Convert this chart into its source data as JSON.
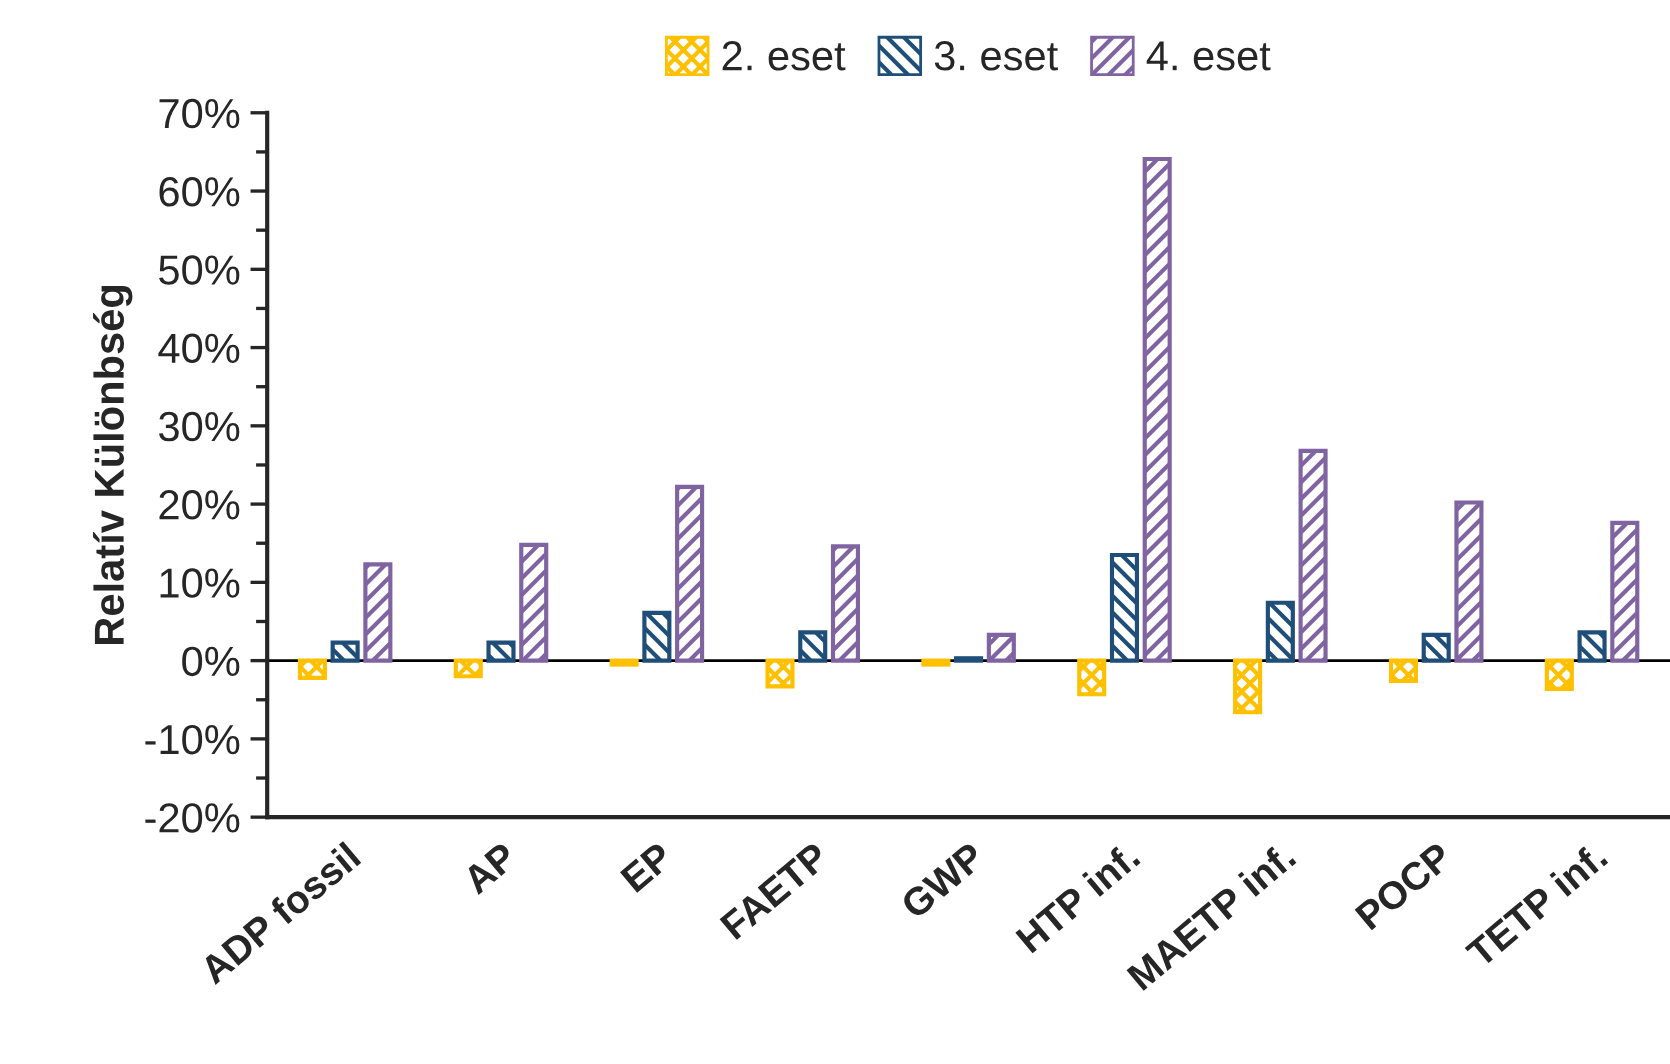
{
  "chart_data": {
    "type": "bar",
    "ylabel": "Relatív Különbség",
    "categories": [
      "ADP fossil",
      "AP",
      "EP",
      "FAETP",
      "GWP",
      "HTP inf.",
      "MAETP inf.",
      "POCP",
      "TETP inf."
    ],
    "series": [
      {
        "name": "2. eset",
        "color": "#ffc000",
        "values": [
          -2.2,
          -2.0,
          -0.5,
          -3.3,
          -0.5,
          -4.3,
          -6.6,
          -2.6,
          -3.6
        ]
      },
      {
        "name": "3. eset",
        "color": "#1f4e79",
        "values": [
          2.3,
          2.3,
          6.1,
          3.6,
          0.3,
          13.5,
          7.4,
          3.3,
          3.6
        ]
      },
      {
        "name": "4. eset",
        "color": "#8064a2",
        "values": [
          12.3,
          14.8,
          22.2,
          14.6,
          3.3,
          64.1,
          26.8,
          20.2,
          17.6
        ]
      }
    ],
    "ylim": [
      -20,
      70
    ],
    "yticks": [
      {
        "value": -20,
        "label": "-20%"
      },
      {
        "value": -10,
        "label": "-10%"
      },
      {
        "value": 0,
        "label": "0%"
      },
      {
        "value": 10,
        "label": "10%"
      },
      {
        "value": 20,
        "label": "20%"
      },
      {
        "value": 30,
        "label": "30%"
      },
      {
        "value": 40,
        "label": "40%"
      },
      {
        "value": 50,
        "label": "50%"
      },
      {
        "value": 60,
        "label": "60%"
      },
      {
        "value": 70,
        "label": "70%"
      }
    ],
    "ref_lines": [
      {
        "axis": "y",
        "value": 0,
        "color": "#000000"
      }
    ],
    "grid": false,
    "legend": "top"
  }
}
